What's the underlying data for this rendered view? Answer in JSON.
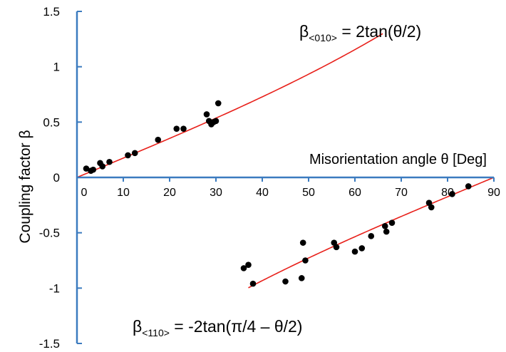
{
  "chart_data": {
    "type": "scatter",
    "title": "",
    "xlabel": "Misorientation angle θ [Deg]",
    "ylabel": "Coupling factor β",
    "xlim": [
      0,
      90
    ],
    "ylim": [
      -1.5,
      1.5
    ],
    "x_ticks": [
      "0",
      "10",
      "20",
      "30",
      "40",
      "50",
      "60",
      "70",
      "80",
      "90"
    ],
    "y_ticks": [
      "1.5",
      "1",
      "0.5",
      "0",
      "-0.5",
      "-1",
      "-1.5"
    ],
    "grid": false,
    "colors": {
      "points": "#000000",
      "fit": "#e8201a",
      "axis": "#3b7bbf"
    },
    "series": [
      {
        "name": "",
        "marker": "circle",
        "x": [
          2,
          3,
          3.5,
          5,
          5.5,
          7,
          11,
          12.5,
          17.5,
          21.5,
          23,
          28,
          28.5,
          29,
          29.5,
          30,
          30.5
        ],
        "y": [
          0.08,
          0.06,
          0.07,
          0.13,
          0.1,
          0.14,
          0.2,
          0.22,
          0.34,
          0.44,
          0.44,
          0.57,
          0.51,
          0.48,
          0.5,
          0.51,
          0.67
        ]
      },
      {
        "name": "",
        "marker": "circle",
        "x": [
          36,
          37,
          38,
          45,
          48.5,
          48.8,
          49.3,
          55.5,
          56,
          60,
          61.5,
          63.5,
          66.5,
          66.8,
          68,
          76,
          76.5,
          81,
          84.5
        ],
        "y": [
          -0.82,
          -0.79,
          -0.96,
          -0.94,
          -0.91,
          -0.59,
          -0.75,
          -0.59,
          -0.63,
          -0.67,
          -0.64,
          -0.53,
          -0.44,
          -0.49,
          -0.41,
          -0.23,
          -0.27,
          -0.15,
          -0.08
        ]
      }
    ],
    "fits": [
      {
        "label_main": "β",
        "label_sub": "<010>",
        "label_rest": " = 2tan(θ/2)",
        "domain": [
          0,
          66
        ]
      },
      {
        "label_main": "β",
        "label_sub": "<110>",
        "label_rest": " = -2tan(π/4 – θ/2)",
        "domain": [
          37,
          90
        ]
      }
    ]
  }
}
